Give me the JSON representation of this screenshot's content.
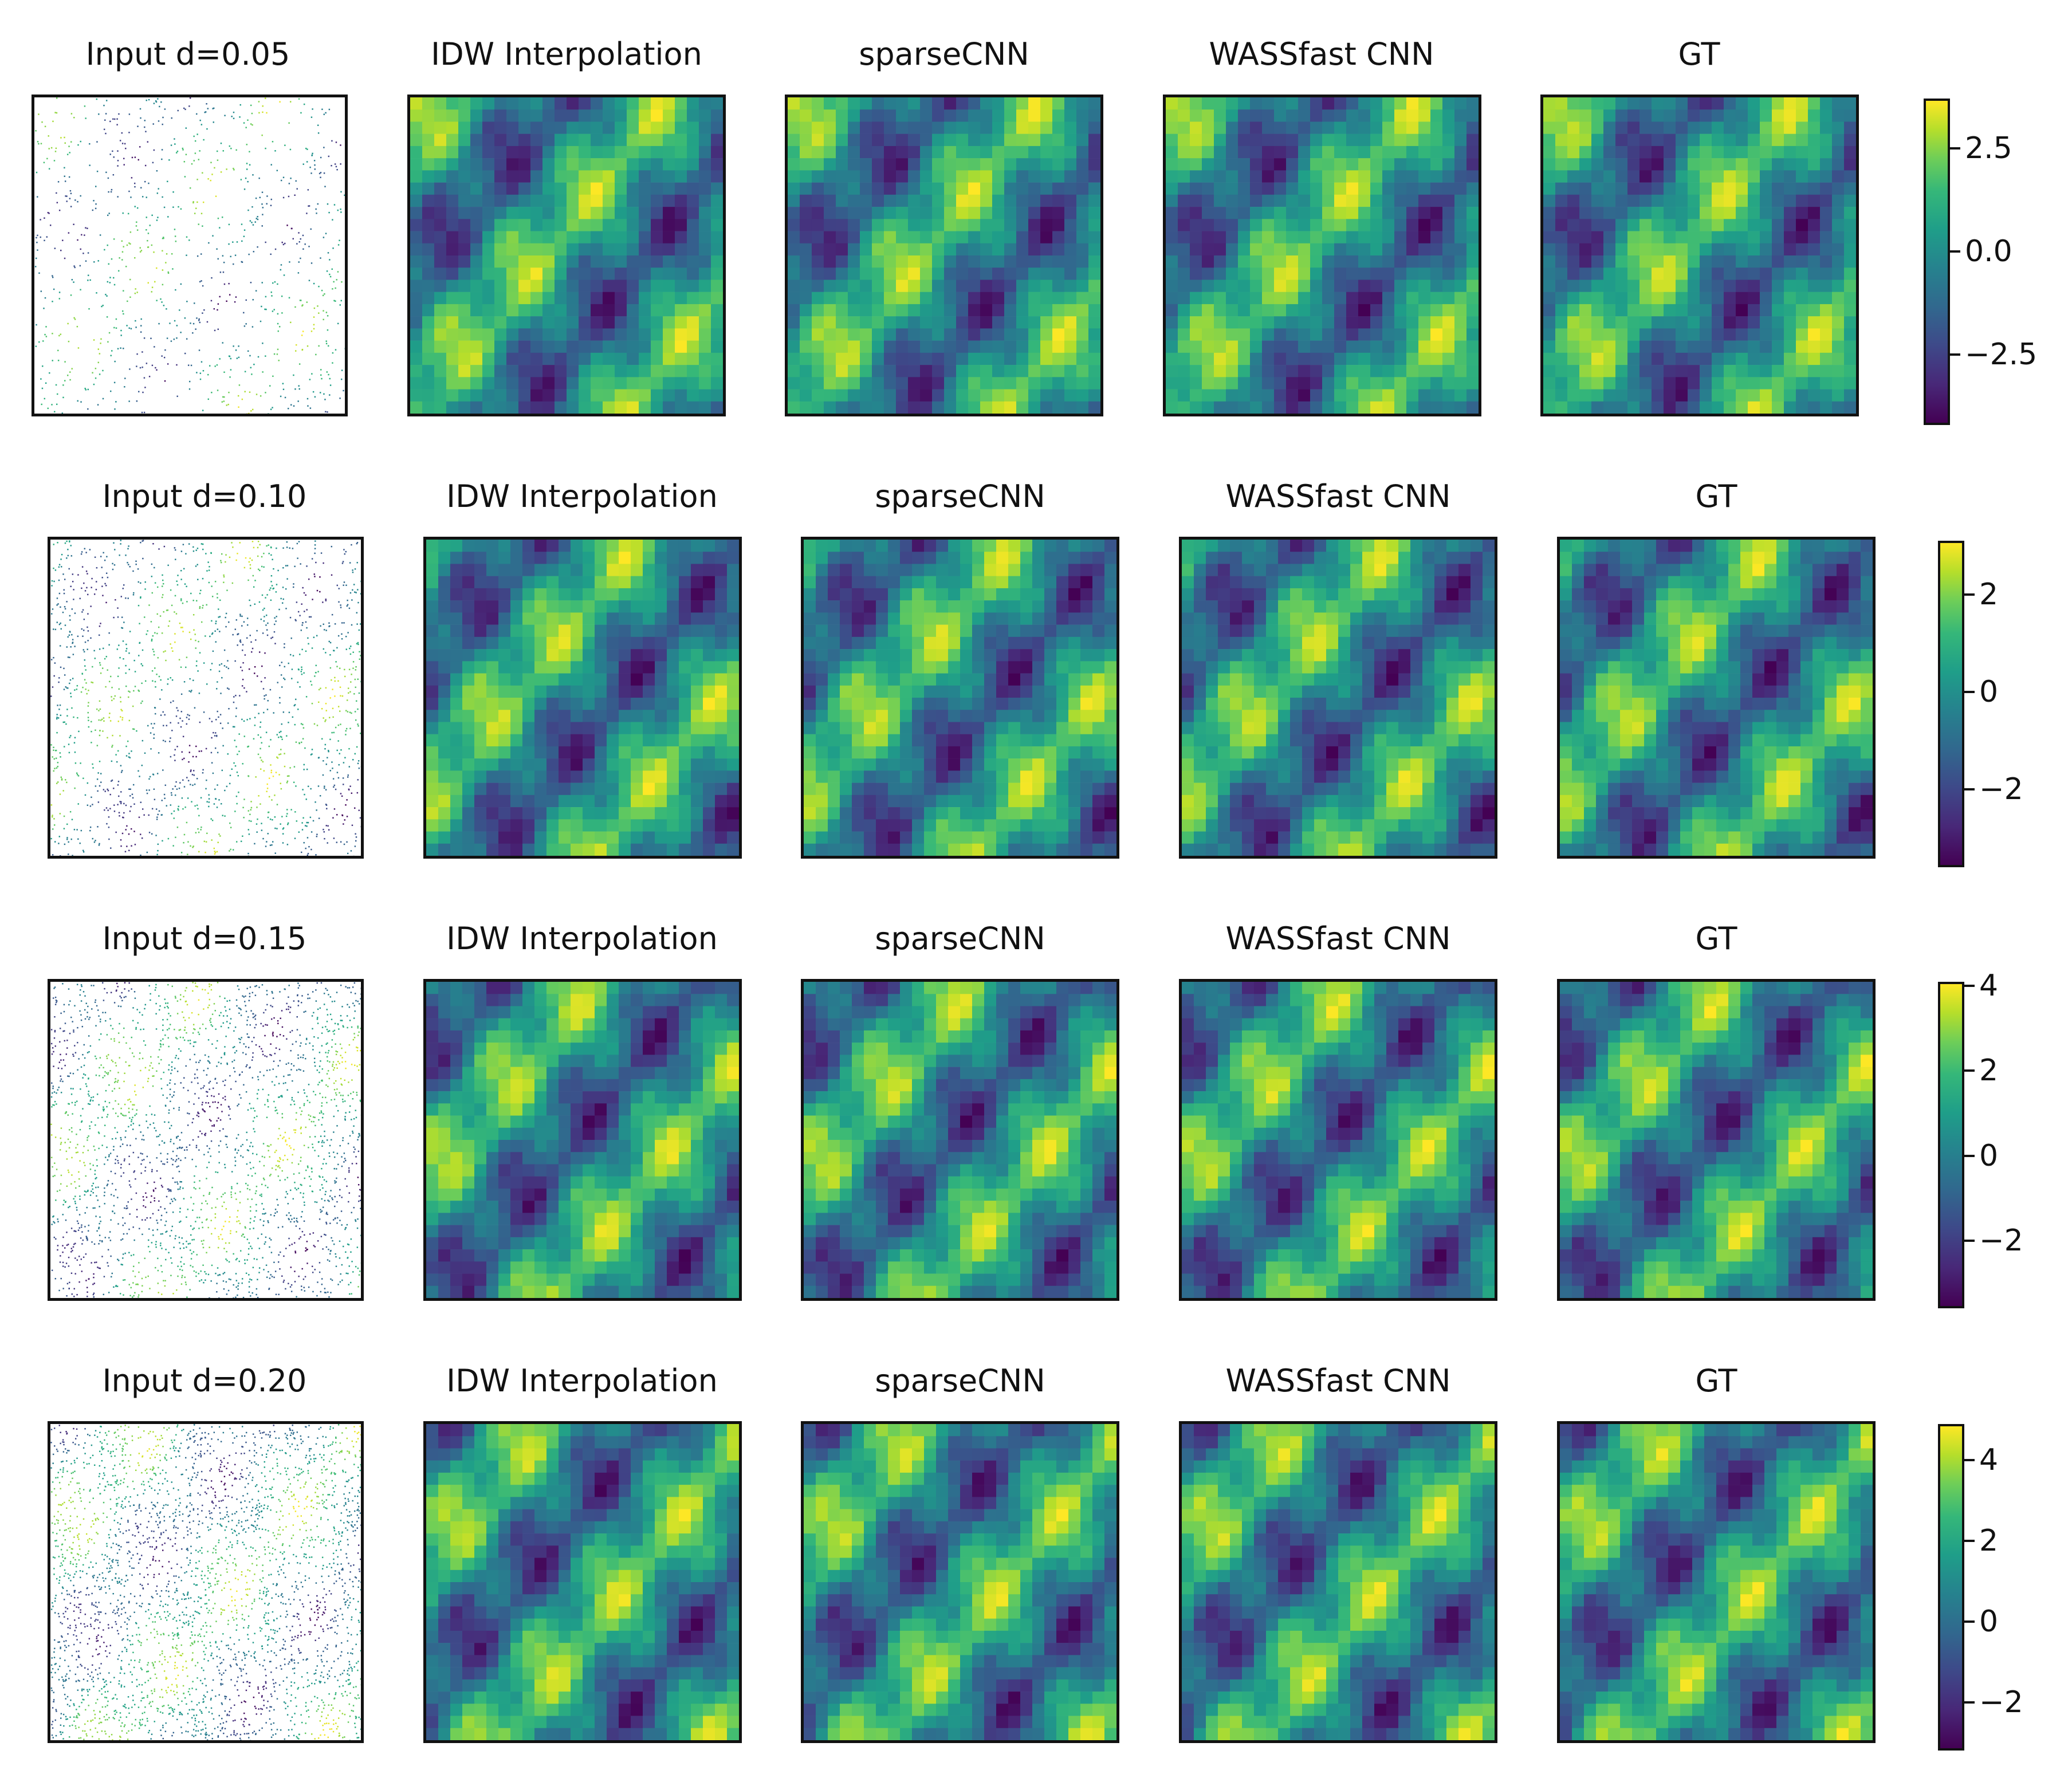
{
  "colormap": [
    "#440154",
    "#482878",
    "#3e4989",
    "#31688e",
    "#26828e",
    "#1f9e89",
    "#35b779",
    "#6ece58",
    "#b5de2b",
    "#fde725"
  ],
  "rows": [
    {
      "titles": [
        "Input d=0.05",
        "IDW Interpolation",
        "sparseCNN",
        "WASSfast CNN",
        "GT"
      ],
      "colorbar": {
        "min": -4.2,
        "max": 3.7,
        "ticks": [
          {
            "value": 2.5,
            "label": "2.5"
          },
          {
            "value": 0.0,
            "label": "0.0"
          },
          {
            "value": -2.5,
            "label": "−2.5"
          }
        ]
      }
    },
    {
      "titles": [
        "Input d=0.10",
        "IDW Interpolation",
        "sparseCNN",
        "WASSfast CNN",
        "GT"
      ],
      "colorbar": {
        "min": -3.6,
        "max": 3.1,
        "ticks": [
          {
            "value": 2,
            "label": "2"
          },
          {
            "value": 0,
            "label": "0"
          },
          {
            "value": -2,
            "label": "−2"
          }
        ]
      }
    },
    {
      "titles": [
        "Input d=0.15",
        "IDW Interpolation",
        "sparseCNN",
        "WASSfast CNN",
        "GT"
      ],
      "colorbar": {
        "min": -3.6,
        "max": 4.1,
        "ticks": [
          {
            "value": 4,
            "label": "4"
          },
          {
            "value": 2,
            "label": "2"
          },
          {
            "value": 0,
            "label": "0"
          },
          {
            "value": -2,
            "label": "−2"
          }
        ]
      }
    },
    {
      "titles": [
        "Input d=0.20",
        "IDW Interpolation",
        "sparseCNN",
        "WASSfast CNN",
        "GT"
      ],
      "colorbar": {
        "min": -3.2,
        "max": 4.9,
        "ticks": [
          {
            "value": 4,
            "label": "4"
          },
          {
            "value": 2,
            "label": "2"
          },
          {
            "value": 0,
            "label": "0"
          },
          {
            "value": -2,
            "label": "−2"
          }
        ]
      }
    }
  ]
}
